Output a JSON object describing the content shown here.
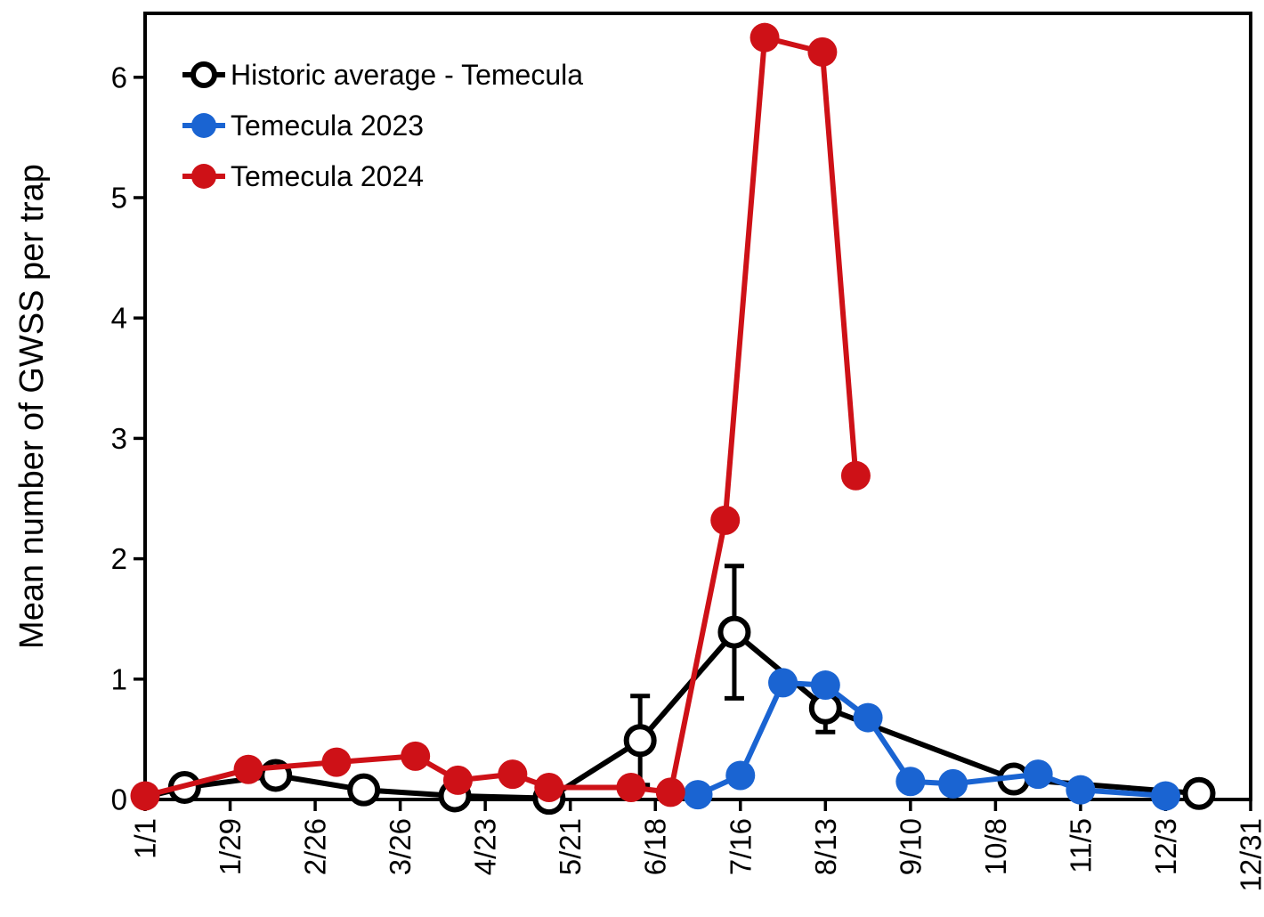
{
  "chart_data": {
    "type": "line",
    "title": "",
    "xlabel": "",
    "ylabel": "Mean number of GWSS per trap",
    "ylim": [
      0,
      6.5
    ],
    "yticks": [
      0,
      1,
      2,
      3,
      4,
      5,
      6
    ],
    "xtick_labels": [
      "1/1",
      "1/29",
      "2/26",
      "3/26",
      "4/23",
      "5/21",
      "6/18",
      "7/16",
      "8/13",
      "9/10",
      "10/8",
      "11/5",
      "12/3",
      "12/31"
    ],
    "xtick_days": [
      1,
      29,
      57,
      85,
      113,
      141,
      169,
      197,
      225,
      253,
      281,
      309,
      337,
      365
    ],
    "grid": false,
    "frame": true,
    "legend_position": "top-left-inside",
    "background_color": "#FFFFFF",
    "axis_color": "#000000",
    "series": [
      {
        "name": "Historic average - Temecula",
        "color": "#000000",
        "marker": "open-circle",
        "points": [
          {
            "date": "1/1",
            "day": 1,
            "value": 0.02,
            "marker": false
          },
          {
            "date": "1/14",
            "day": 14,
            "value": 0.1
          },
          {
            "date": "2/13",
            "day": 44,
            "value": 0.2
          },
          {
            "date": "3/14",
            "day": 73,
            "value": 0.08
          },
          {
            "date": "4/13",
            "day": 103,
            "value": 0.03
          },
          {
            "date": "5/14",
            "day": 134,
            "value": 0.01
          },
          {
            "date": "6/13",
            "day": 164,
            "value": 0.49,
            "err": 0.37
          },
          {
            "date": "7/14",
            "day": 195,
            "value": 1.39,
            "err": 0.55
          },
          {
            "date": "8/13",
            "day": 225,
            "value": 0.76,
            "err": 0.2
          },
          {
            "date": "10/14",
            "day": 287,
            "value": 0.17
          },
          {
            "date": "12/14",
            "day": 348,
            "value": 0.05
          }
        ]
      },
      {
        "name": "Temecula 2023",
        "color": "#1A64D2",
        "marker": "filled-circle",
        "points": [
          {
            "date": "7/2",
            "day": 183,
            "value": 0.04
          },
          {
            "date": "7/16",
            "day": 197,
            "value": 0.2
          },
          {
            "date": "7/30",
            "day": 211,
            "value": 0.97
          },
          {
            "date": "8/13",
            "day": 225,
            "value": 0.95
          },
          {
            "date": "8/27",
            "day": 239,
            "value": 0.68
          },
          {
            "date": "9/10",
            "day": 253,
            "value": 0.15
          },
          {
            "date": "9/24",
            "day": 267,
            "value": 0.13
          },
          {
            "date": "10/22",
            "day": 295,
            "value": 0.21
          },
          {
            "date": "11/5",
            "day": 309,
            "value": 0.08
          },
          {
            "date": "12/3",
            "day": 337,
            "value": 0.03
          }
        ]
      },
      {
        "name": "Temecula 2024",
        "color": "#CE1117",
        "marker": "filled-circle",
        "points": [
          {
            "date": "1/1",
            "day": 1,
            "value": 0.03
          },
          {
            "date": "2/4",
            "day": 35,
            "value": 0.25
          },
          {
            "date": "3/5",
            "day": 64,
            "value": 0.31
          },
          {
            "date": "3/31",
            "day": 90,
            "value": 0.36
          },
          {
            "date": "4/14",
            "day": 104,
            "value": 0.16
          },
          {
            "date": "5/2",
            "day": 122,
            "value": 0.21
          },
          {
            "date": "5/14",
            "day": 134,
            "value": 0.1
          },
          {
            "date": "6/10",
            "day": 161,
            "value": 0.1
          },
          {
            "date": "6/23",
            "day": 174,
            "value": 0.06
          },
          {
            "date": "7/11",
            "day": 192,
            "value": 2.32
          },
          {
            "date": "7/24",
            "day": 205,
            "value": 6.33
          },
          {
            "date": "8/12",
            "day": 224,
            "value": 6.21
          },
          {
            "date": "8/23",
            "day": 235,
            "value": 2.69
          }
        ]
      }
    ]
  }
}
